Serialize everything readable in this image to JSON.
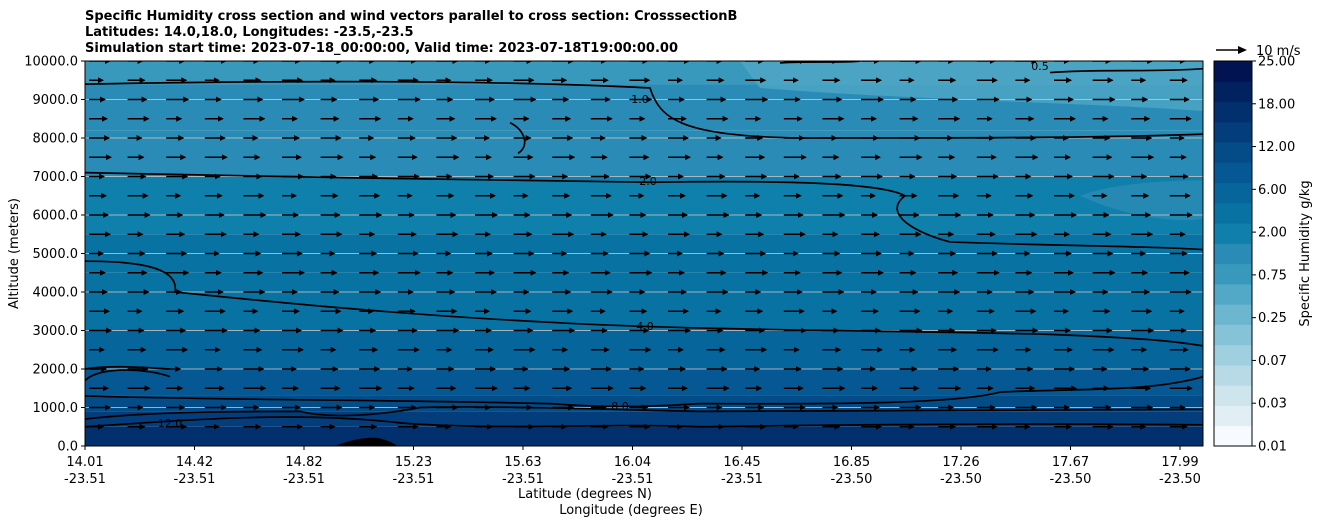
{
  "header": {
    "title_line1": "Specific Humidity cross section and wind vectors parallel to cross section: CrosssectionB",
    "title_line2": "Latitudes: 14.0,18.0, Longitudes: -23.5,-23.5",
    "title_line3": "Simulation start time: 2023-07-18_00:00:00, Valid time: 2023-07-18T19:00:00.00"
  },
  "chart_data": {
    "type": "heatmap",
    "title": "Specific Humidity cross section and wind vectors parallel to cross section: CrosssectionB",
    "ylabel": "Altitude (meters)",
    "xlabel_lat": "Latitude (degrees N)",
    "xlabel_lon": "Longitude (degrees E)",
    "ylim": [
      0,
      10000
    ],
    "yticks": [
      "0.0",
      "1000.0",
      "2000.0",
      "3000.0",
      "4000.0",
      "5000.0",
      "6000.0",
      "7000.0",
      "8000.0",
      "9000.0",
      "10000.0"
    ],
    "xticks_lat": [
      "14.01",
      "14.42",
      "14.82",
      "15.23",
      "15.63",
      "16.04",
      "16.45",
      "16.85",
      "17.26",
      "17.67",
      "17.99"
    ],
    "xticks_lon": [
      "-23.51",
      "-23.51",
      "-23.51",
      "-23.51",
      "-23.51",
      "-23.51",
      "-23.51",
      "-23.50",
      "-23.50",
      "-23.50",
      "-23.50"
    ],
    "grid": "horizontal",
    "colorbar": {
      "label": "Specific Humidity g/kg",
      "levels": [
        0.01,
        0.02,
        0.03,
        0.05,
        0.07,
        0.1,
        0.25,
        0.5,
        0.75,
        1.0,
        2.0,
        3.0,
        6.0,
        9.0,
        12.0,
        15.0,
        18.0,
        21.0,
        25.0
      ],
      "tick_labels": [
        "0.01",
        "0.03",
        "0.07",
        "0.25",
        "0.75",
        "2.00",
        "6.00",
        "12.00",
        "18.00",
        "25.00"
      ],
      "colors": [
        "#f7fbff",
        "#e1eef3",
        "#cfe5ee",
        "#b8dae7",
        "#a0cfe0",
        "#87c3d8",
        "#6cb6d0",
        "#51a8c7",
        "#3899bd",
        "#2a8cb6",
        "#0f7fab",
        "#0872a3",
        "#06659b",
        "#055893",
        "#044c88",
        "#033d7c",
        "#022f6e",
        "#01215f",
        "#011451"
      ]
    },
    "contours": [
      {
        "label": "12.0",
        "altitude_m": 550
      },
      {
        "label": "8.0",
        "altitude_m": 1000
      },
      {
        "label": "4.0",
        "altitude_m": 3000
      },
      {
        "label": "2.0",
        "altitude_m": 6800
      },
      {
        "label": "1.0",
        "altitude_m": 8500
      },
      {
        "label": "0.5",
        "altitude_m": 9800
      }
    ],
    "wind_reference": {
      "label": "10 m/s",
      "speed_ms": 10
    }
  }
}
